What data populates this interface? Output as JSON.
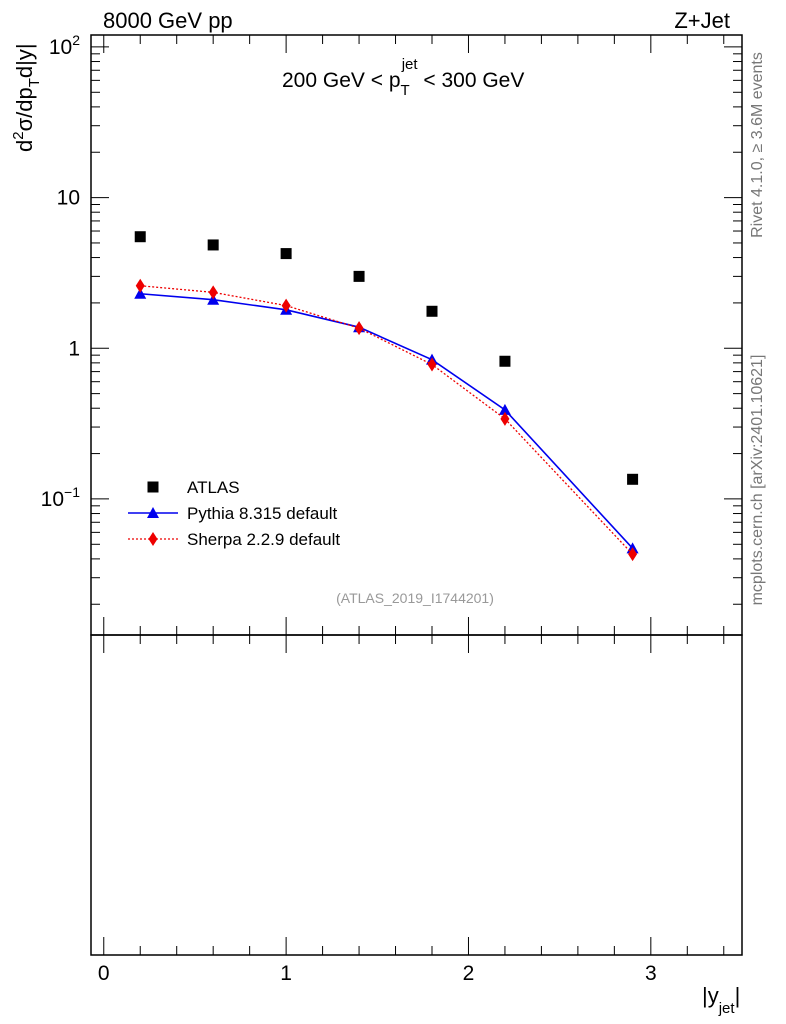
{
  "header": {
    "left": "8000 GeV pp",
    "right": "Z+Jet"
  },
  "side_text": {
    "rivet": "Rivet 4.1.0, ≥ 3.6M events",
    "mcplots": "mcplots.cern.ch [arXiv:2401.10621]"
  },
  "chart_data": {
    "type": "scatter",
    "title_parts": {
      "pre": "200 GeV < p",
      "sub": "T",
      "sup": "jet",
      "post": " < 300 GeV"
    },
    "ylabel": "d²σ/dp_T d|y|",
    "ylabel_parts": {
      "d": "d",
      "sup2": "2",
      "mid": "σ/dp",
      "sub": "T",
      "end": "d|y|"
    },
    "xlabel_parts": {
      "main": "|y",
      "sub": "jet",
      "end": "|"
    },
    "analysis_id": "(ATLAS_2019_I1744201)",
    "y_scale": "log",
    "ylim": [
      0.0125,
      120
    ],
    "xlim": [
      -0.07,
      3.5
    ],
    "y_ticks": [
      {
        "value": 0.1,
        "base": "10",
        "exp": "−1"
      },
      {
        "value": 1,
        "base": "1",
        "exp": ""
      },
      {
        "value": 10,
        "base": "10",
        "exp": ""
      },
      {
        "value": 100,
        "base": "10",
        "exp": "2"
      }
    ],
    "x_ticks": [
      {
        "value": 0,
        "label": "0"
      },
      {
        "value": 1,
        "label": "1"
      },
      {
        "value": 2,
        "label": "2"
      },
      {
        "value": 3,
        "label": "3"
      }
    ],
    "legend_position": "bottom-left",
    "series": [
      {
        "name": "ATLAS",
        "style": "marker-only",
        "marker": "square",
        "color": "#000000",
        "x": [
          0.2,
          0.6,
          1.0,
          1.4,
          1.8,
          2.2,
          2.9
        ],
        "y": [
          5.5,
          4.85,
          4.25,
          3.0,
          1.76,
          0.82,
          0.135
        ]
      },
      {
        "name": "Pythia 8.315 default",
        "style": "line",
        "marker": "triangle",
        "color": "#0000ee",
        "x": [
          0.2,
          0.6,
          1.0,
          1.4,
          1.8,
          2.2,
          2.9
        ],
        "y": [
          2.3,
          2.1,
          1.8,
          1.38,
          0.84,
          0.39,
          0.047
        ]
      },
      {
        "name": "Sherpa 2.2.9 default",
        "style": "dotted",
        "marker": "diamond",
        "color": "#ee0000",
        "x": [
          0.2,
          0.6,
          1.0,
          1.4,
          1.8,
          2.2,
          2.9
        ],
        "y": [
          2.6,
          2.35,
          1.92,
          1.36,
          0.78,
          0.34,
          0.043
        ]
      }
    ]
  }
}
